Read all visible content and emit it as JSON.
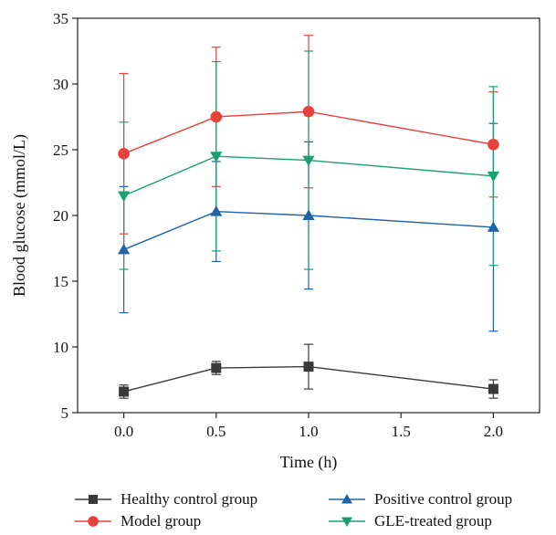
{
  "chart_data": {
    "type": "line",
    "xlabel": "Time (h)",
    "ylabel": "Blood glucose (mmol/L)",
    "xlim": [
      -0.25,
      2.25
    ],
    "ylim": [
      5,
      35
    ],
    "x_ticks": [
      "0.0",
      "0.5",
      "1.0",
      "1.5",
      "2.0"
    ],
    "y_ticks": [
      "5",
      "10",
      "15",
      "20",
      "25",
      "30",
      "35"
    ],
    "x": [
      0.0,
      0.5,
      1.0,
      2.0
    ],
    "error_bars": true,
    "legend_position": "bottom",
    "series": [
      {
        "name": "Healthy control group",
        "marker": "square",
        "color": "#3a3a3a",
        "values": [
          6.6,
          8.4,
          8.5,
          6.8
        ],
        "errors": [
          0.5,
          0.5,
          1.7,
          0.7
        ]
      },
      {
        "name": "Model group",
        "marker": "circle",
        "color": "#e8413c",
        "values": [
          24.7,
          27.5,
          27.9,
          25.4
        ],
        "errors": [
          6.1,
          5.3,
          5.8,
          4.0
        ]
      },
      {
        "name": "Positive control group",
        "marker": "triangle-up",
        "color": "#1f63a8",
        "values": [
          17.4,
          20.3,
          20.0,
          19.1
        ],
        "errors": [
          4.8,
          3.8,
          5.6,
          7.9
        ]
      },
      {
        "name": "GLE-treated group",
        "marker": "triangle-down",
        "color": "#1aa070",
        "values": [
          21.5,
          24.5,
          24.2,
          23.0
        ],
        "errors": [
          5.6,
          7.2,
          8.3,
          6.8
        ]
      }
    ]
  }
}
